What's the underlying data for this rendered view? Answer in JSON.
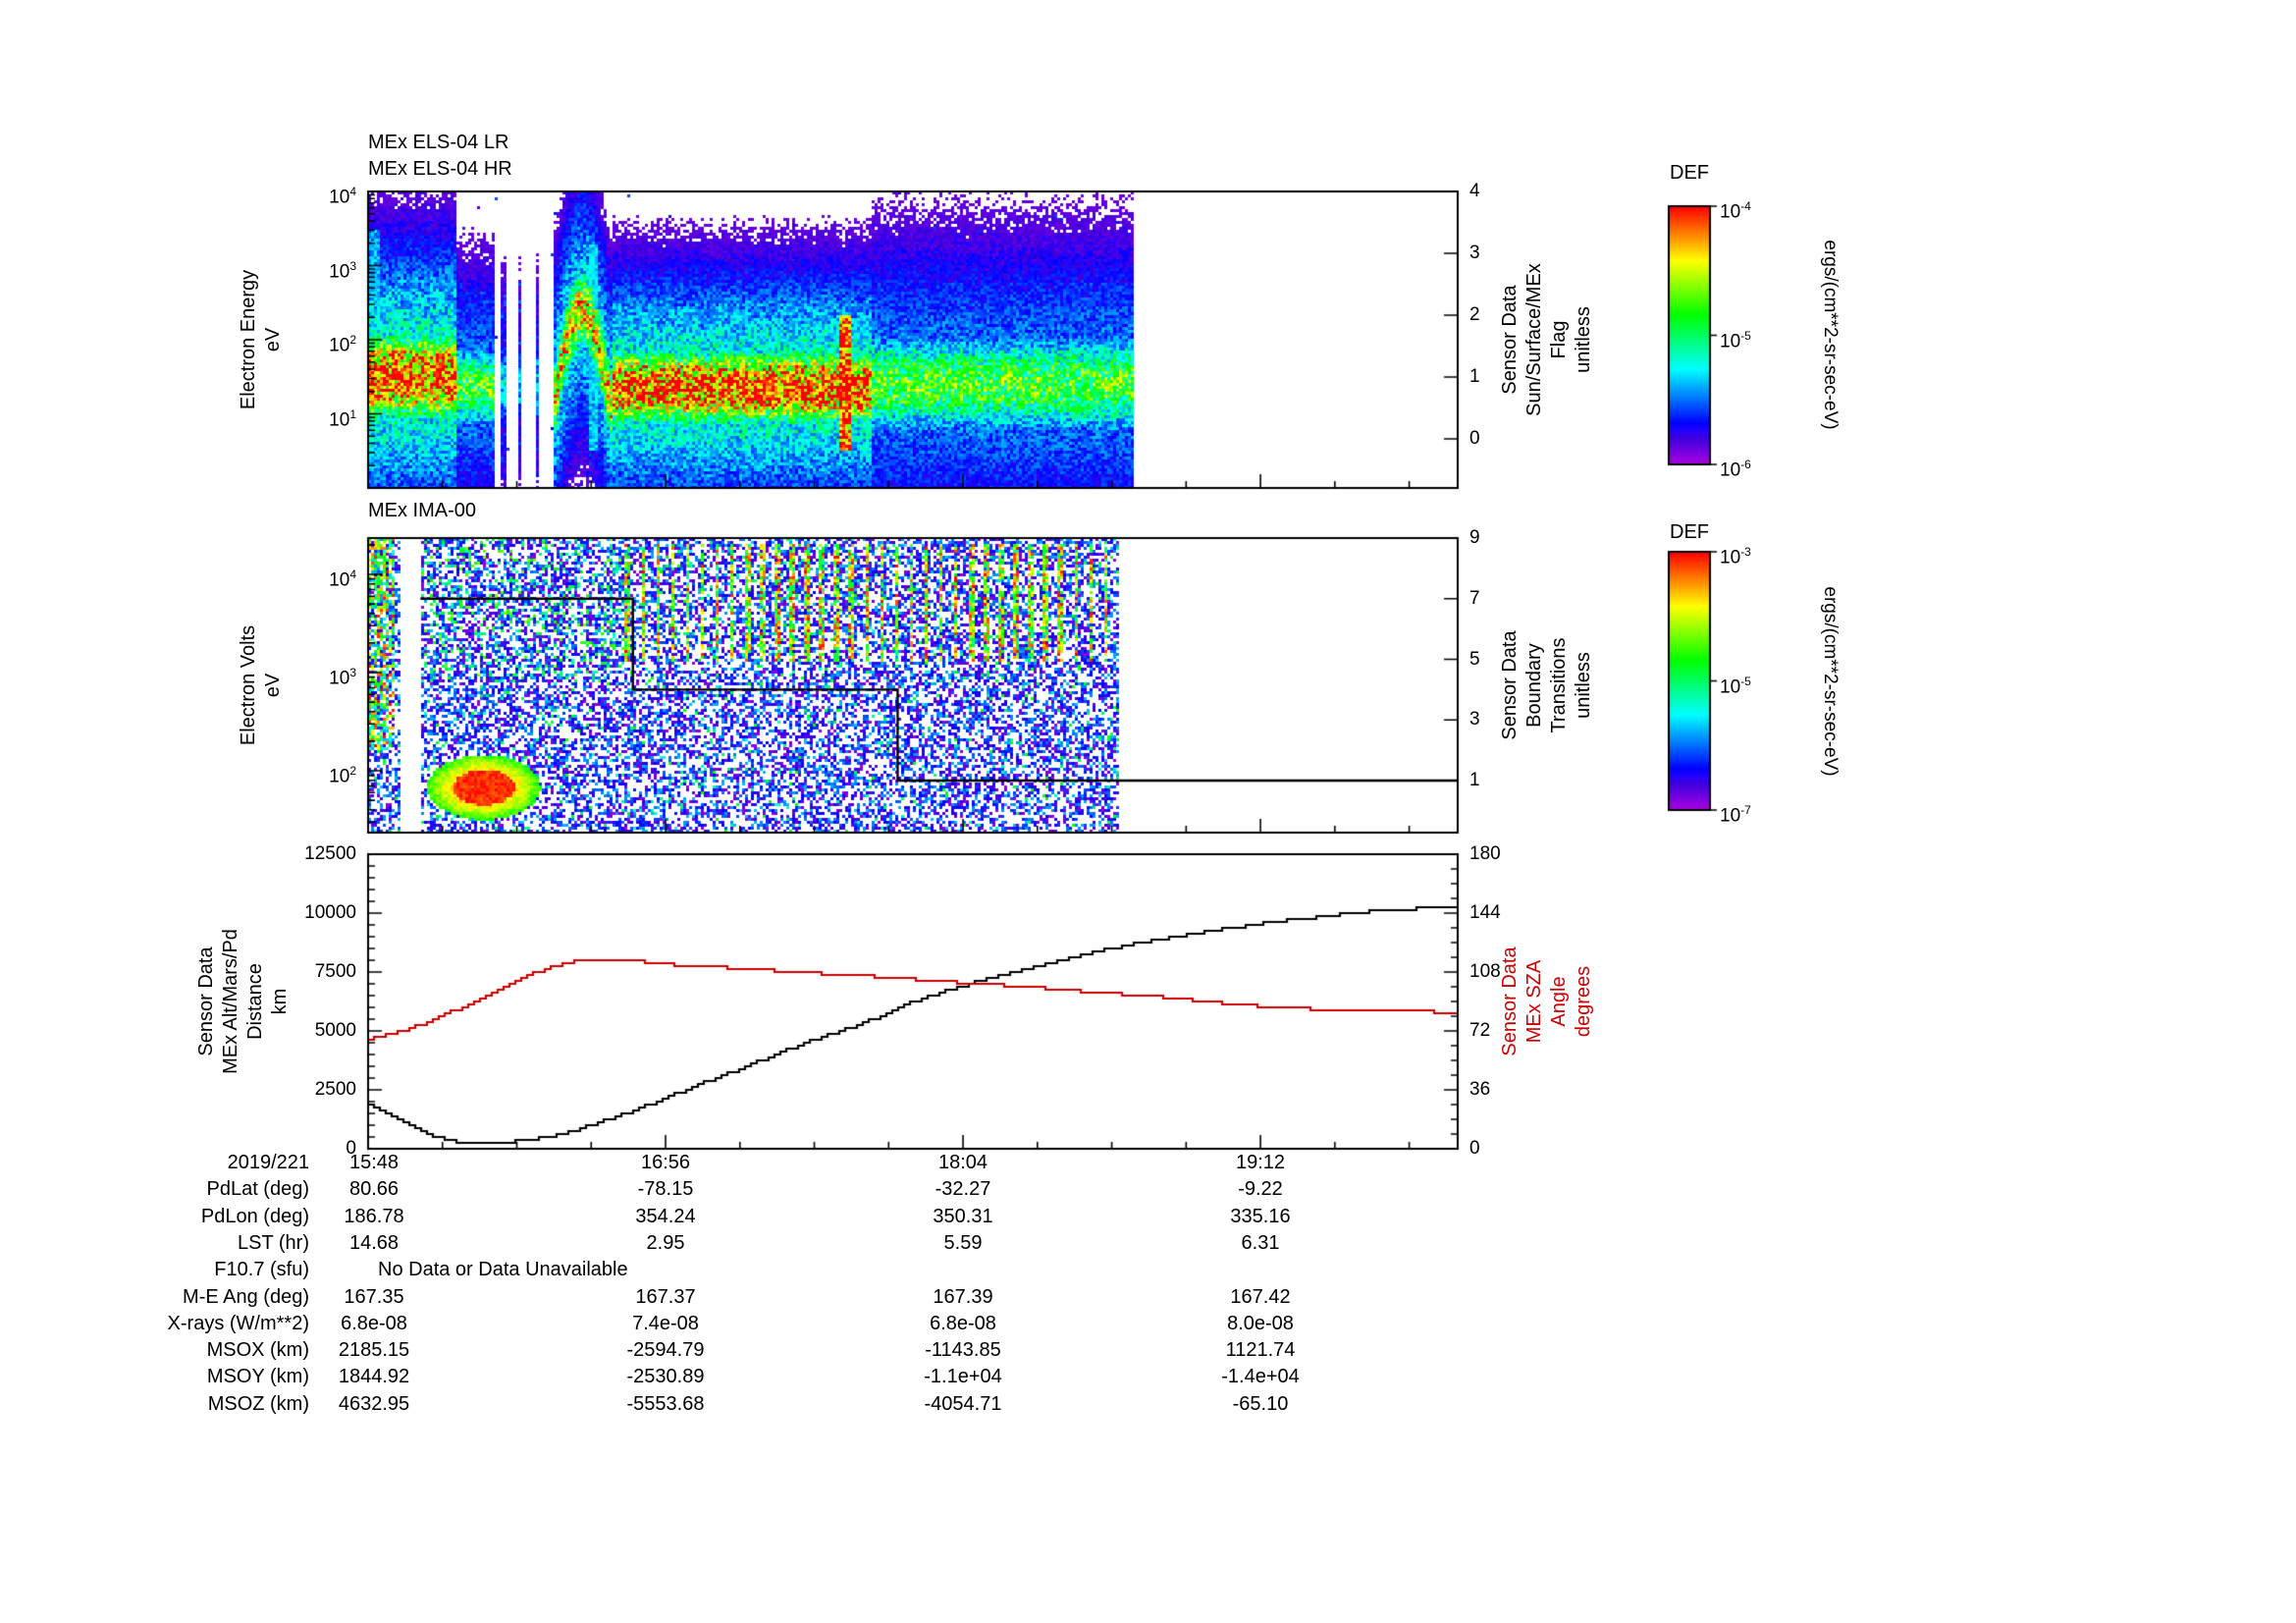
{
  "log_base": "10",
  "panels": {
    "els": {
      "title_lr": "MEx ELS-04 LR",
      "title_hr": "MEx ELS-04 HR",
      "ylabel": "Electron Energy\neV",
      "right_label": "Sensor Data\nSun/Surface/MEx\nFlag\nunitless",
      "y_tick_exponents": [
        4,
        3,
        2,
        1
      ],
      "right_ticks": [
        "4",
        "3",
        "2",
        "1",
        "0"
      ],
      "colorbar": {
        "title": "DEF",
        "tick_exponents": [
          -4,
          -5,
          -6
        ],
        "units": "ergs/(cm**2-sr-sec-eV)"
      }
    },
    "ima": {
      "title": "MEx IMA-00",
      "ylabel": "Electron Volts\neV",
      "right_label": "Sensor Data\nBoundary\nTransitions\nunitless",
      "y_tick_exponents": [
        4,
        3,
        2
      ],
      "right_ticks": [
        "9",
        "7",
        "5",
        "3",
        "1"
      ],
      "colorbar": {
        "title": "DEF",
        "tick_exponents": [
          -3,
          -5,
          -7
        ],
        "units": "ergs/(cm**2-sr-sec-eV)"
      }
    },
    "lines": {
      "left_label": "Sensor Data\nMEx Alt/Mars/Pd\nDistance\nkm",
      "right_label": "Sensor Data\nMEx SZA\nAngle\ndegrees",
      "left_ticks": [
        "12500",
        "10000",
        "7500",
        "5000",
        "2500",
        "0"
      ],
      "right_ticks": [
        "180",
        "144",
        "108",
        "72",
        "36",
        "0"
      ],
      "red": "#cc0000"
    }
  },
  "table": {
    "col_labels": [
      "2019/221",
      "PdLat (deg)",
      "PdLon (deg)",
      "LST (hr)",
      "F10.7 (sfu)",
      "M-E Ang (deg)",
      "X-rays (W/m**2)",
      "MSOX (km)",
      "MSOY (km)",
      "MSOZ (km)"
    ],
    "rows": [
      [
        "15:48",
        "16:56",
        "18:04",
        "19:12"
      ],
      [
        "80.66",
        "-78.15",
        "-32.27",
        "-9.22"
      ],
      [
        "186.78",
        "354.24",
        "350.31",
        "335.16"
      ],
      [
        "14.68",
        "2.95",
        "5.59",
        "6.31"
      ],
      [
        "No Data or Data Unavailable"
      ],
      [
        "167.35",
        "167.37",
        "167.39",
        "167.42"
      ],
      [
        "6.8e-08",
        "7.4e-08",
        "6.8e-08",
        "8.0e-08"
      ],
      [
        "2185.15",
        "-2594.79",
        "-1143.85",
        "1121.74"
      ],
      [
        "1844.92",
        "-2530.89",
        "-1.1e+04",
        "-1.4e+04"
      ],
      [
        "4632.95",
        "-5553.68",
        "-4054.71",
        "-65.10"
      ]
    ]
  },
  "chart_data": [
    {
      "type": "heatmap",
      "title": "MEx ELS-04 LR / MEx ELS-04 HR",
      "ylabel": "Electron Energy (eV)",
      "yscale": "log",
      "ylim": [
        1,
        10000
      ],
      "x_date": "2019/221",
      "x_ticks": [
        "15:48",
        "16:56",
        "18:04",
        "19:12"
      ],
      "xlim": [
        "15:48",
        "19:57"
      ],
      "zlabel": "DEF ergs/(cm**2-sr-sec-eV)",
      "zlim": [
        1e-06,
        0.0001
      ],
      "right_axis": {
        "label": "Sensor Data Sun/Surface/MEx Flag (unitless)",
        "lim": [
          0,
          4
        ]
      },
      "data_end_frac": 0.703,
      "segments": [
        {
          "f0": 0.0,
          "f1": 0.08,
          "amp": 1.0,
          "center": 1.5,
          "width": 0.42
        },
        {
          "f0": 0.08,
          "f1": 0.115,
          "amp": 0.6,
          "center": 1.35,
          "width": 0.38
        },
        {
          "f0": 0.115,
          "f1": 0.168,
          "amp": 0.35,
          "center": 1.4,
          "width": 0.38,
          "sparse": 0.78
        },
        {
          "f0": 0.168,
          "f1": 0.222,
          "amp": 0.8,
          "center": 1.5,
          "width": 0.4,
          "bump": true
        },
        {
          "f0": 0.222,
          "f1": 0.46,
          "amp": 1.0,
          "center": 1.35,
          "width": 0.36
        },
        {
          "f0": 0.46,
          "f1": 0.703,
          "amp": 0.6,
          "center": 1.4,
          "width": 0.46
        }
      ],
      "spikes": [
        {
          "f": 0.004,
          "hw": 0.005,
          "amp": 0.32,
          "top": 3.5,
          "bottom": 0.3
        },
        {
          "f": 0.205,
          "hw": 0.004,
          "amp": 0.35,
          "top": 3.3,
          "bottom": 0.5
        },
        {
          "f": 0.437,
          "hw": 0.005,
          "amp": 1.0,
          "top": 2.35,
          "bottom": 0.5
        }
      ]
    },
    {
      "type": "heatmap",
      "title": "MEx IMA-00",
      "ylabel": "Electron Volts (eV)",
      "yscale": "log",
      "x_date": "2019/221",
      "x_ticks": [
        "15:48",
        "16:56",
        "18:04",
        "19:12"
      ],
      "xlim": [
        "15:48",
        "19:57"
      ],
      "zlabel": "DEF ergs/(cm**2-sr-sec-eV)",
      "zlim": [
        1e-07,
        0.001
      ],
      "right_axis": {
        "label": "Sensor Data Boundary Transitions (unitless)",
        "lim": [
          0,
          9
        ]
      },
      "data_end_frac": 0.69,
      "background_density": 0.5,
      "left_edge_f": 0.022,
      "gap": [
        0.028,
        0.047
      ],
      "stripes": {
        "f0": 0.235,
        "f1": 0.69,
        "period": 0.0137,
        "duty": 0.3,
        "log_lo": 3.1,
        "log_hi": 4.3
      },
      "blob": {
        "f": 0.105,
        "rf": 0.052,
        "logE": 1.83,
        "rlog": 0.33
      },
      "boundary_series": [
        {
          "f": 0.048,
          "v": 7
        },
        {
          "f": 0.243,
          "v": 4
        },
        {
          "f": 0.486,
          "v": 1
        },
        {
          "f": 1.0,
          "v": 1
        }
      ]
    },
    {
      "type": "line",
      "x_date": "2019/221",
      "x_ticks": [
        "15:48",
        "16:56",
        "18:04",
        "19:12"
      ],
      "xlim": [
        "15:48",
        "19:57"
      ],
      "series": [
        {
          "name": "MEx Alt/Mars/Pd Distance (km)",
          "color": "#000000",
          "axis": "left",
          "ylim": [
            0,
            12500
          ],
          "x_frac": [
            0,
            0.03,
            0.06,
            0.08,
            0.1,
            0.13,
            0.16,
            0.19,
            0.22,
            0.25,
            0.28,
            0.31,
            0.34,
            0.37,
            0.4,
            0.43,
            0.46,
            0.49,
            0.52,
            0.55,
            0.58,
            0.61,
            0.64,
            0.67,
            0.7,
            0.73,
            0.76,
            0.79,
            0.82,
            0.85,
            0.88,
            0.91,
            0.94,
            1.0
          ],
          "values": [
            1900,
            1150,
            520,
            300,
            260,
            300,
            480,
            800,
            1250,
            1750,
            2300,
            2850,
            3400,
            3950,
            4480,
            4980,
            5450,
            6100,
            6550,
            6980,
            7380,
            7740,
            8080,
            8390,
            8670,
            8930,
            9160,
            9370,
            9560,
            9730,
            9880,
            10050,
            10150,
            10280
          ]
        },
        {
          "name": "MEx SZA Angle (degrees)",
          "color": "#cc0000",
          "axis": "right",
          "ylim": [
            0,
            180
          ],
          "x_frac": [
            0,
            0.03,
            0.06,
            0.09,
            0.12,
            0.15,
            0.17,
            0.19,
            0.21,
            0.24,
            0.28,
            0.33,
            0.38,
            0.43,
            0.48,
            0.53,
            0.58,
            0.63,
            0.68,
            0.73,
            0.78,
            0.83,
            0.88,
            0.94,
            1.0
          ],
          "values": [
            67,
            72,
            79,
            88,
            98,
            107,
            111.5,
            114.5,
            116,
            115,
            112.5,
            110.5,
            108.5,
            106.5,
            104.5,
            102,
            100,
            97.5,
            95,
            92.5,
            89,
            86.5,
            85,
            84,
            83.5
          ]
        }
      ]
    }
  ]
}
